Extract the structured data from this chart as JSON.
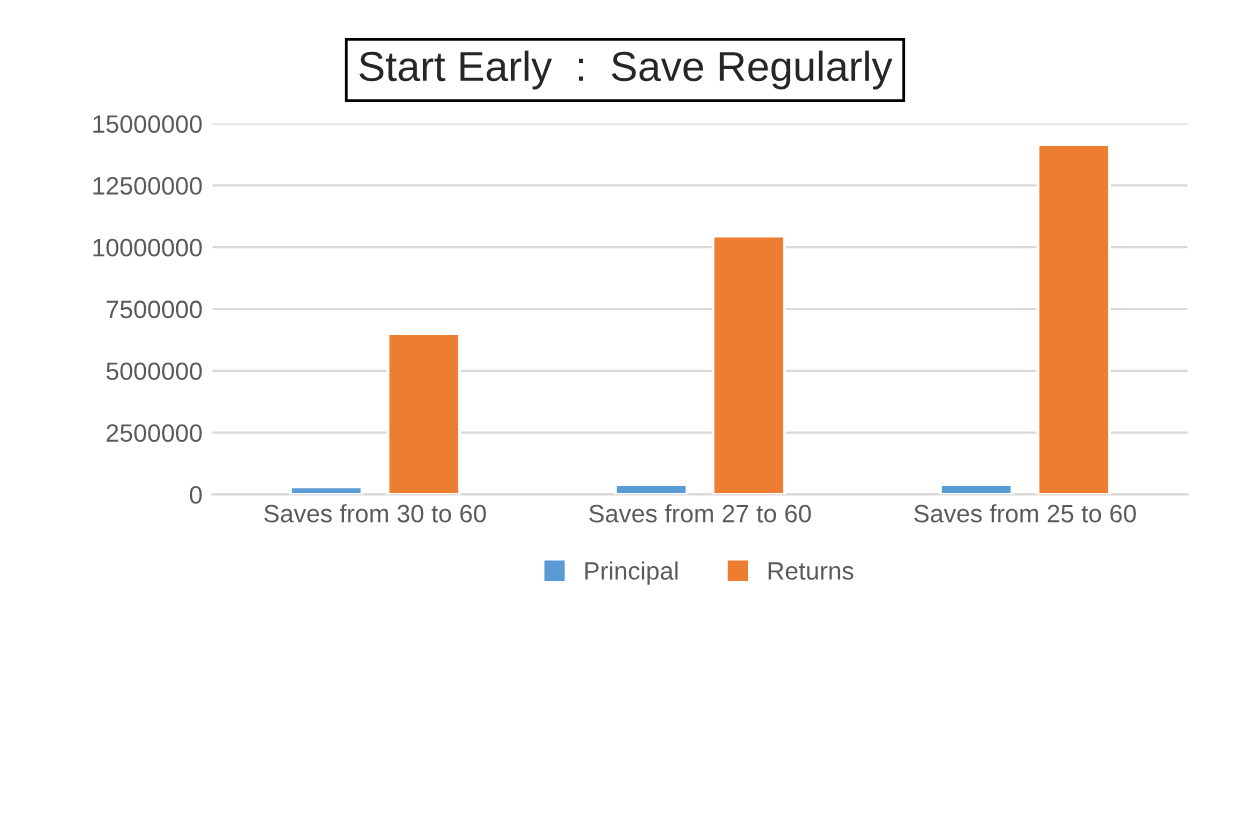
{
  "chart_data": {
    "type": "bar",
    "title": "Start Early  :  Save Regularly",
    "categories": [
      "Saves from 30 to 60",
      "Saves from 27 to 60",
      "Saves from 25 to 60"
    ],
    "series": [
      {
        "name": "Principal",
        "color": "#5b9bd5",
        "values": [
          300000,
          400000,
          400000
        ]
      },
      {
        "name": "Returns",
        "color": "#ed7d31",
        "values": [
          6500000,
          10450000,
          14150000
        ]
      }
    ],
    "ylim": [
      0,
      15000000
    ],
    "yticks": [
      0,
      2500000,
      5000000,
      7500000,
      10000000,
      12500000,
      15000000
    ],
    "grid": "y",
    "legend": "bottom"
  }
}
